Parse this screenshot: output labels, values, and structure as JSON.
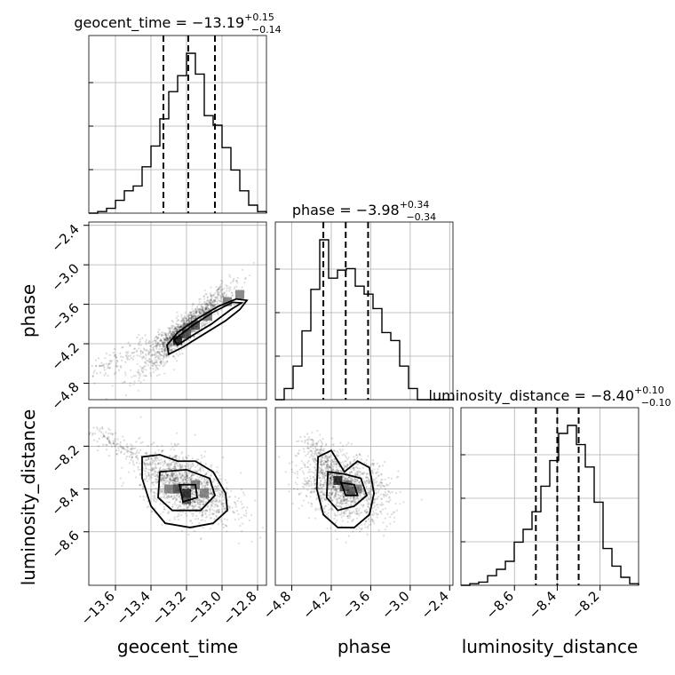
{
  "chart_data": {
    "type": "corner",
    "parameters": [
      {
        "name": "geocent_time",
        "title": {
          "prefix": "geocent_time = ",
          "median": "−13.19",
          "plus": "+0.15",
          "minus": "−0.14"
        },
        "range": [
          -13.75,
          -12.75
        ],
        "ticks": [
          -13.6,
          -13.4,
          -13.2,
          -13.0,
          -12.8
        ],
        "tick_labels": [
          "−13.6",
          "−13.4",
          "−13.2",
          "−13.0",
          "−12.8"
        ],
        "quantiles": [
          -13.33,
          -13.19,
          -13.04
        ],
        "hist": [
          0.0,
          0.01,
          0.03,
          0.08,
          0.14,
          0.17,
          0.29,
          0.42,
          0.59,
          0.76,
          0.86,
          1.0,
          0.87,
          0.61,
          0.55,
          0.41,
          0.27,
          0.14,
          0.05,
          0.01
        ]
      },
      {
        "name": "phase",
        "title": {
          "prefix": "phase = ",
          "median": "−3.98",
          "plus": "+0.34",
          "minus": "−0.34"
        },
        "range": [
          -5.05,
          -2.35
        ],
        "ticks": [
          -4.8,
          -4.2,
          -3.6,
          -3.0,
          -2.4
        ],
        "tick_labels": [
          "−4.8",
          "−4.2",
          "−3.6",
          "−3.0",
          "−2.4"
        ],
        "quantiles": [
          -4.32,
          -3.98,
          -3.64
        ],
        "hist": [
          0.0,
          0.07,
          0.21,
          0.43,
          0.69,
          1.0,
          0.76,
          0.81,
          0.82,
          0.71,
          0.66,
          0.57,
          0.42,
          0.37,
          0.21,
          0.07,
          0.0,
          0.0,
          0.0,
          0.0
        ]
      },
      {
        "name": "luminosity_distance",
        "title": {
          "prefix": "luminosity_distance = ",
          "median": "−8.40",
          "plus": "+0.10",
          "minus": "−0.10"
        },
        "range": [
          -8.85,
          -8.02
        ],
        "ticks": [
          -8.6,
          -8.4,
          -8.2
        ],
        "tick_labels": [
          "−8.6",
          "−8.4",
          "−8.2"
        ],
        "quantiles": [
          -8.5,
          -8.4,
          -8.3
        ],
        "hist": [
          0.0,
          0.01,
          0.02,
          0.06,
          0.1,
          0.15,
          0.27,
          0.35,
          0.46,
          0.62,
          0.78,
          0.95,
          1.0,
          0.88,
          0.74,
          0.52,
          0.23,
          0.12,
          0.05,
          0.01
        ]
      }
    ],
    "pairs": [
      {
        "x": "geocent_time",
        "y": "phase",
        "samples": {
          "center": [
            -13.2,
            -3.97
          ],
          "sd": [
            0.12,
            0.31
          ],
          "corr": 0.93,
          "tail_to": [
            -13.72,
            -4.62
          ]
        },
        "dense_bins": [
          [
            -13.25,
            -4.15
          ],
          [
            -13.2,
            -4.05
          ],
          [
            -13.15,
            -3.92
          ],
          [
            -13.08,
            -3.78
          ],
          [
            -12.97,
            -3.56
          ],
          [
            -12.9,
            -3.45
          ]
        ],
        "contours": [
          [
            [
              -13.3,
              -4.36
            ],
            [
              -13.22,
              -4.25
            ],
            [
              -13.1,
              -4.05
            ],
            [
              -12.98,
              -3.85
            ],
            [
              -12.9,
              -3.68
            ],
            [
              -12.86,
              -3.54
            ],
            [
              -12.92,
              -3.52
            ],
            [
              -13.02,
              -3.63
            ],
            [
              -13.14,
              -3.82
            ],
            [
              -13.25,
              -4.03
            ],
            [
              -13.31,
              -4.22
            ]
          ],
          [
            [
              -13.25,
              -4.22
            ],
            [
              -13.17,
              -4.08
            ],
            [
              -13.06,
              -3.9
            ],
            [
              -12.95,
              -3.68
            ],
            [
              -12.89,
              -3.58
            ],
            [
              -12.94,
              -3.57
            ],
            [
              -13.05,
              -3.72
            ],
            [
              -13.17,
              -3.93
            ],
            [
              -13.27,
              -4.14
            ]
          ]
        ]
      },
      {
        "x": "geocent_time",
        "y": "luminosity_distance",
        "samples": {
          "center": [
            -13.2,
            -8.39
          ],
          "sd": [
            0.13,
            0.08
          ],
          "corr": -0.45,
          "tail_to": [
            -13.72,
            -8.13
          ]
        },
        "dense_bins": [
          [
            -13.2,
            -8.42
          ],
          [
            -13.2,
            -8.45
          ],
          [
            -13.25,
            -8.4
          ],
          [
            -13.15,
            -8.38
          ],
          [
            -13.3,
            -8.4
          ],
          [
            -13.1,
            -8.42
          ]
        ],
        "contours": [
          [
            [
              -13.45,
              -8.25
            ],
            [
              -13.35,
              -8.24
            ],
            [
              -13.25,
              -8.27
            ],
            [
              -13.15,
              -8.27
            ],
            [
              -13.05,
              -8.32
            ],
            [
              -12.98,
              -8.42
            ],
            [
              -12.97,
              -8.5
            ],
            [
              -13.05,
              -8.56
            ],
            [
              -13.18,
              -8.58
            ],
            [
              -13.32,
              -8.56
            ],
            [
              -13.4,
              -8.48
            ],
            [
              -13.45,
              -8.35
            ]
          ],
          [
            [
              -13.35,
              -8.32
            ],
            [
              -13.2,
              -8.31
            ],
            [
              -13.07,
              -8.35
            ],
            [
              -13.04,
              -8.43
            ],
            [
              -13.12,
              -8.5
            ],
            [
              -13.28,
              -8.5
            ],
            [
              -13.36,
              -8.44
            ]
          ],
          [
            [
              -13.24,
              -8.38
            ],
            [
              -13.15,
              -8.38
            ],
            [
              -13.14,
              -8.44
            ],
            [
              -13.22,
              -8.46
            ]
          ]
        ]
      },
      {
        "x": "phase",
        "y": "luminosity_distance",
        "samples": {
          "center": [
            -4.0,
            -8.39
          ],
          "sd": [
            0.33,
            0.08
          ],
          "corr": -0.3,
          "tail_to": [
            -4.55,
            -8.17
          ]
        },
        "dense_bins": [
          [
            -4.1,
            -8.36
          ],
          [
            -4.0,
            -8.39
          ],
          [
            -3.9,
            -8.41
          ],
          [
            -3.8,
            -8.4
          ],
          [
            -3.95,
            -8.38
          ]
        ],
        "contours": [
          [
            [
              -4.4,
              -8.25
            ],
            [
              -4.2,
              -8.22
            ],
            [
              -4.0,
              -8.32
            ],
            [
              -3.8,
              -8.27
            ],
            [
              -3.62,
              -8.3
            ],
            [
              -3.55,
              -8.42
            ],
            [
              -3.62,
              -8.52
            ],
            [
              -3.85,
              -8.58
            ],
            [
              -4.1,
              -8.58
            ],
            [
              -4.32,
              -8.52
            ],
            [
              -4.42,
              -8.4
            ]
          ],
          [
            [
              -4.25,
              -8.32
            ],
            [
              -4.0,
              -8.33
            ],
            [
              -3.75,
              -8.35
            ],
            [
              -3.66,
              -8.43
            ],
            [
              -3.85,
              -8.48
            ],
            [
              -4.1,
              -8.5
            ],
            [
              -4.27,
              -8.44
            ]
          ],
          [
            [
              -4.05,
              -8.37
            ],
            [
              -3.85,
              -8.38
            ],
            [
              -3.8,
              -8.43
            ],
            [
              -3.98,
              -8.43
            ]
          ]
        ]
      }
    ]
  }
}
